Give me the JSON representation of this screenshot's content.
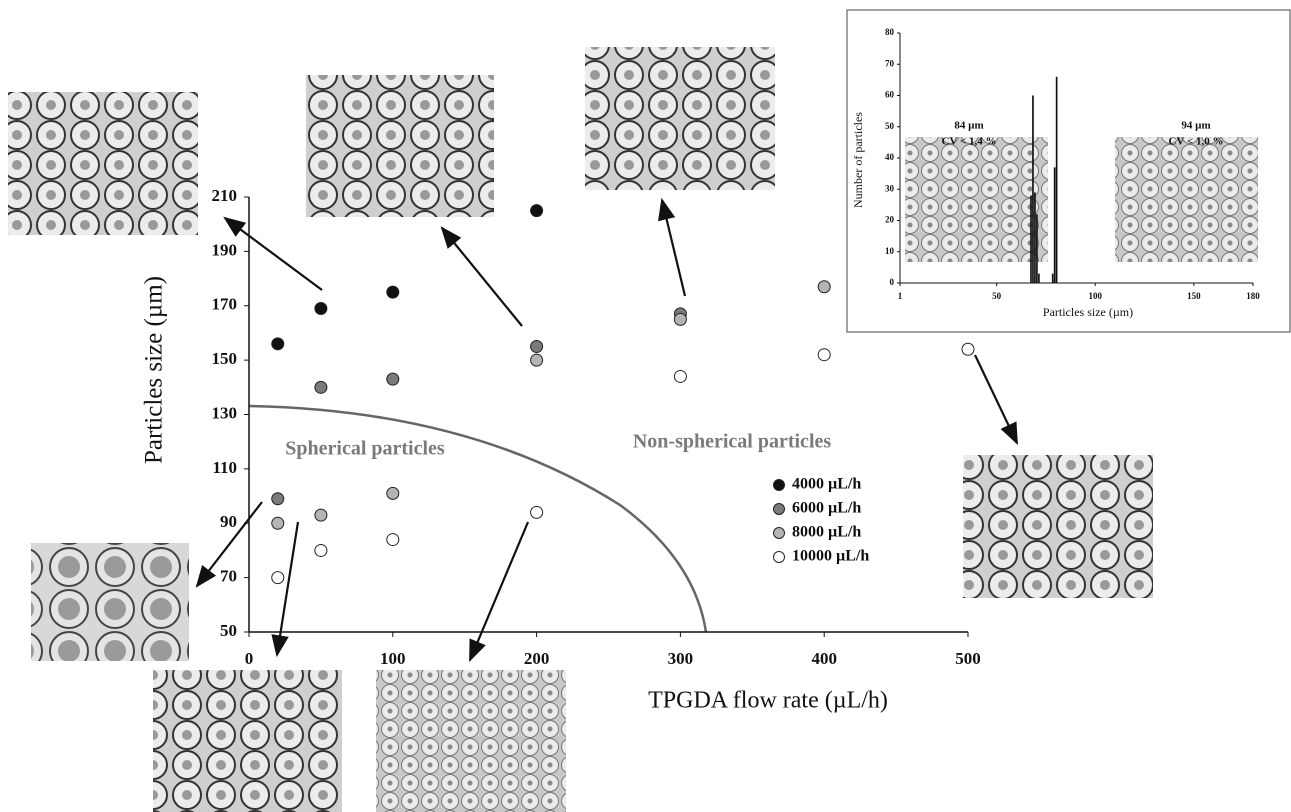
{
  "chart_data": [
    {
      "type": "scatter",
      "xlabel": "TPGDA flow rate (µL/h)",
      "ylabel": "Particles size (µm)",
      "annotations": [
        "Spherical particles",
        "Non-spherical particles"
      ],
      "xlim": [
        0,
        500
      ],
      "xticks": [
        0,
        100,
        200,
        300,
        400,
        500
      ],
      "ylim": [
        50,
        210
      ],
      "yticks": [
        50,
        70,
        90,
        110,
        130,
        150,
        170,
        190,
        210
      ],
      "series": [
        {
          "name": "4000 µL/h",
          "color": "#111111",
          "x": [
            20,
            50,
            100,
            200
          ],
          "values": [
            156,
            169,
            175,
            205
          ]
        },
        {
          "name": "6000 µL/h",
          "color": "#7a7a7a",
          "x": [
            20,
            50,
            100,
            200,
            300
          ],
          "values": [
            99,
            140,
            143,
            155,
            167
          ]
        },
        {
          "name": "8000 µL/h",
          "color": "#b4b4b4",
          "x": [
            20,
            50,
            100,
            200,
            300,
            400
          ],
          "values": [
            90,
            93,
            101,
            150,
            165,
            177
          ]
        },
        {
          "name": "10000 µL/h",
          "color": "#ffffff",
          "x": [
            20,
            50,
            100,
            200,
            300,
            400,
            500
          ],
          "values": [
            70,
            80,
            84,
            94,
            144,
            152,
            154
          ]
        }
      ]
    },
    {
      "type": "histogram",
      "xlabel": "Particles size (µm)",
      "ylabel": "Number of particles",
      "annotations": [
        "84 µm",
        "CV < 1,4 %",
        "94 µm",
        "CV < 1,0 %"
      ],
      "xlim": [
        1,
        180
      ],
      "xticks": [
        1,
        50,
        100,
        150,
        180
      ],
      "ylim": [
        0,
        80
      ],
      "yticks": [
        0,
        10,
        20,
        30,
        40,
        50,
        60,
        70,
        80
      ],
      "color": "#111111",
      "bins": [
        67,
        68,
        69,
        70,
        71,
        72,
        73,
        74,
        75,
        76,
        77,
        78,
        79,
        80,
        81
      ],
      "values": [
        28,
        60,
        29,
        22,
        3,
        0,
        0,
        0,
        0,
        0,
        0,
        3,
        37,
        66
      ]
    }
  ]
}
